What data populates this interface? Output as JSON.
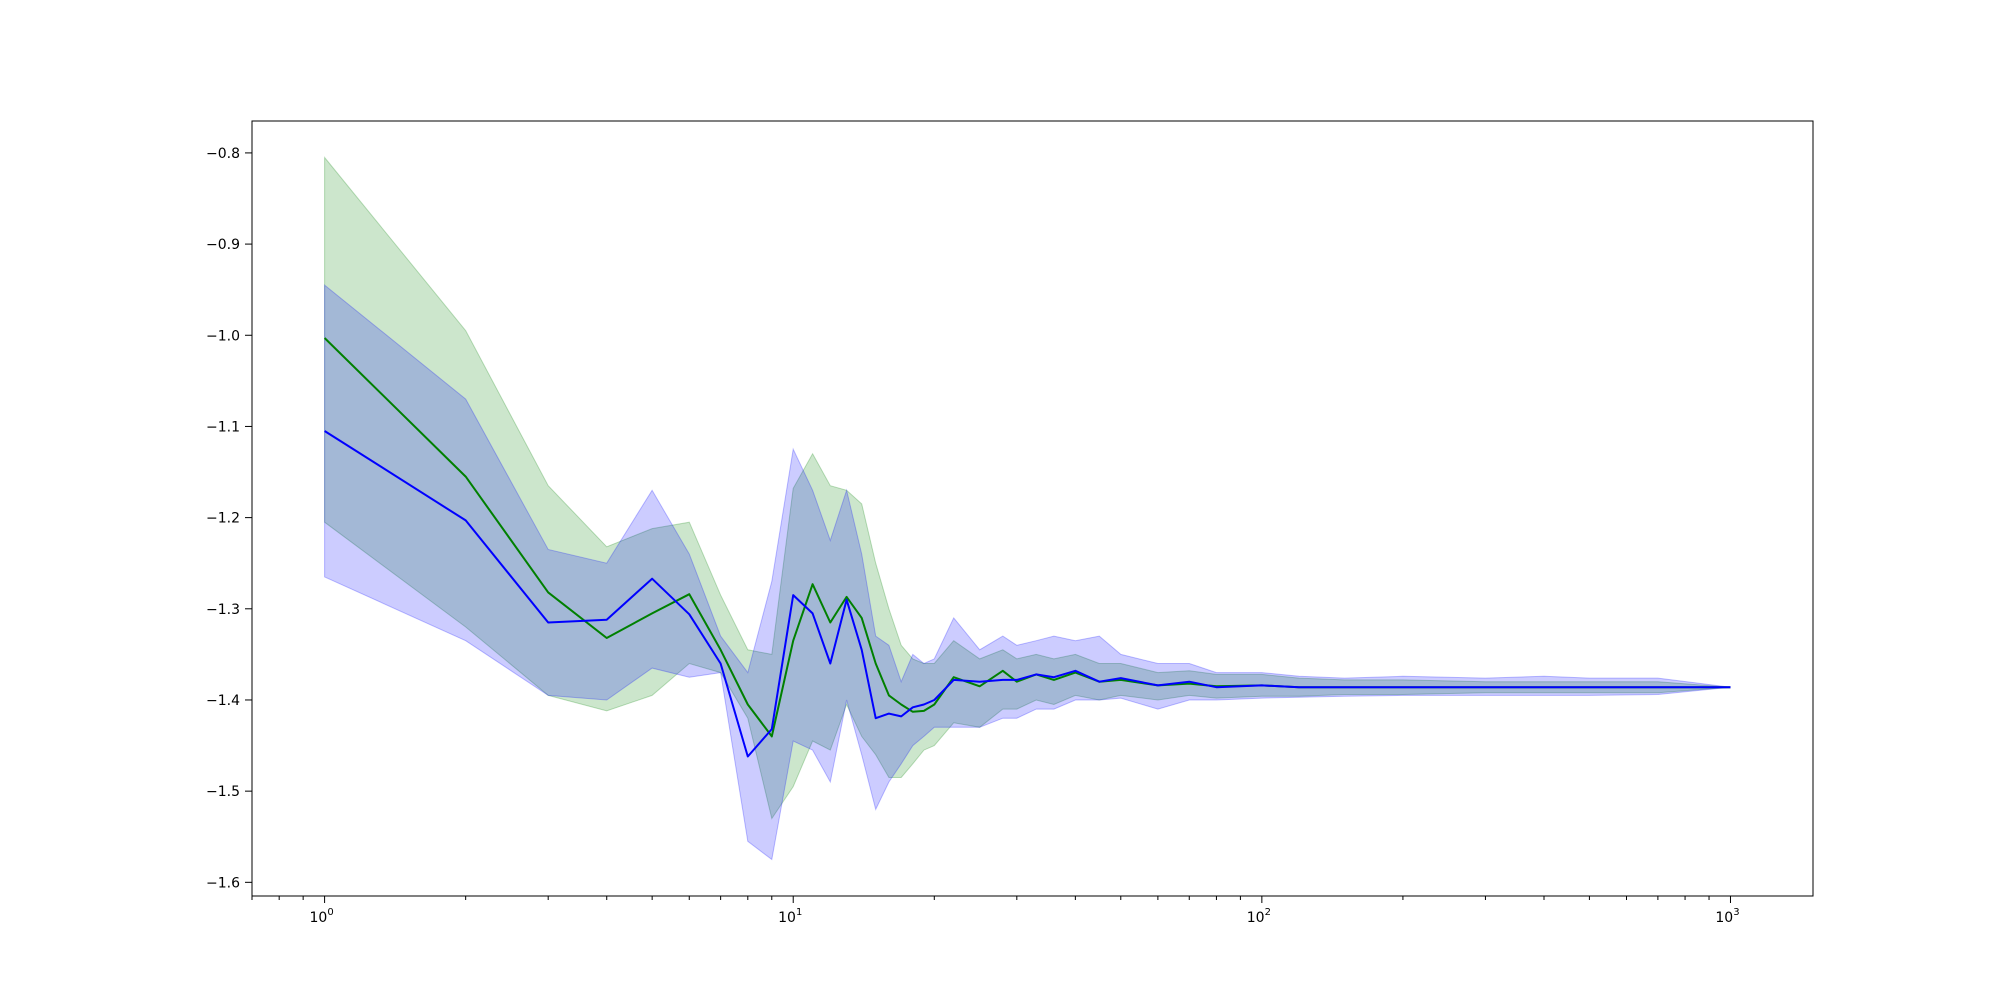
{
  "chart_data": {
    "type": "line",
    "title": "",
    "xlabel": "",
    "ylabel": "",
    "x_scale": "log",
    "xlim": [
      0.7,
      1500
    ],
    "ylim": [
      -1.615,
      -0.765
    ],
    "grid": false,
    "legend": "none",
    "x_tick_labels": [
      {
        "value": 1,
        "base": "10",
        "exp": "0"
      },
      {
        "value": 10,
        "base": "10",
        "exp": "1"
      },
      {
        "value": 100,
        "base": "10",
        "exp": "2"
      },
      {
        "value": 1000,
        "base": "10",
        "exp": "3"
      }
    ],
    "y_ticks": [
      -0.8,
      -0.9,
      -1.0,
      -1.1,
      -1.2,
      -1.3,
      -1.4,
      -1.5,
      -1.6
    ],
    "y_tick_labels": [
      "−0.8",
      "−0.9",
      "−1.0",
      "−1.1",
      "−1.2",
      "−1.3",
      "−1.4",
      "−1.5",
      "−1.6"
    ],
    "series": [
      {
        "color": "#008000",
        "band_color": "#008000",
        "x": [
          1,
          2,
          3,
          4,
          5,
          6,
          7,
          8,
          9,
          10,
          11,
          12,
          13,
          14,
          15,
          16,
          17,
          18,
          19,
          20,
          22,
          25,
          28,
          30,
          33,
          36,
          40,
          45,
          50,
          60,
          70,
          80,
          100,
          120,
          150,
          200,
          300,
          400,
          500,
          700,
          1000
        ],
        "y": [
          -1.003,
          -1.155,
          -1.282,
          -1.332,
          -1.305,
          -1.284,
          -1.345,
          -1.405,
          -1.44,
          -1.335,
          -1.273,
          -1.315,
          -1.287,
          -1.31,
          -1.36,
          -1.395,
          -1.405,
          -1.413,
          -1.412,
          -1.405,
          -1.375,
          -1.385,
          -1.368,
          -1.38,
          -1.372,
          -1.378,
          -1.37,
          -1.38,
          -1.378,
          -1.384,
          -1.382,
          -1.385,
          -1.384,
          -1.386,
          -1.386,
          -1.386,
          -1.386,
          -1.386,
          -1.386,
          -1.386,
          -1.386
        ],
        "upper": [
          -0.805,
          -0.995,
          -1.165,
          -1.232,
          -1.212,
          -1.205,
          -1.285,
          -1.345,
          -1.35,
          -1.168,
          -1.13,
          -1.165,
          -1.17,
          -1.185,
          -1.25,
          -1.3,
          -1.34,
          -1.355,
          -1.36,
          -1.36,
          -1.335,
          -1.355,
          -1.345,
          -1.355,
          -1.35,
          -1.355,
          -1.35,
          -1.36,
          -1.36,
          -1.37,
          -1.368,
          -1.372,
          -1.372,
          -1.376,
          -1.378,
          -1.378,
          -1.38,
          -1.38,
          -1.38,
          -1.38,
          -1.386
        ],
        "lower": [
          -1.205,
          -1.32,
          -1.395,
          -1.412,
          -1.395,
          -1.36,
          -1.37,
          -1.42,
          -1.53,
          -1.495,
          -1.445,
          -1.455,
          -1.405,
          -1.44,
          -1.46,
          -1.485,
          -1.485,
          -1.47,
          -1.455,
          -1.45,
          -1.425,
          -1.43,
          -1.41,
          -1.41,
          -1.4,
          -1.405,
          -1.395,
          -1.4,
          -1.395,
          -1.4,
          -1.395,
          -1.398,
          -1.396,
          -1.396,
          -1.394,
          -1.394,
          -1.392,
          -1.392,
          -1.392,
          -1.392,
          -1.386
        ]
      },
      {
        "color": "#0000ff",
        "band_color": "#0000ff",
        "x": [
          1,
          2,
          3,
          4,
          5,
          6,
          7,
          8,
          9,
          10,
          11,
          12,
          13,
          14,
          15,
          16,
          17,
          18,
          19,
          20,
          22,
          25,
          28,
          30,
          33,
          36,
          40,
          45,
          50,
          60,
          70,
          80,
          100,
          120,
          150,
          200,
          300,
          400,
          500,
          700,
          1000
        ],
        "y": [
          -1.105,
          -1.203,
          -1.315,
          -1.312,
          -1.267,
          -1.306,
          -1.36,
          -1.462,
          -1.432,
          -1.285,
          -1.305,
          -1.36,
          -1.29,
          -1.345,
          -1.42,
          -1.415,
          -1.418,
          -1.408,
          -1.405,
          -1.4,
          -1.378,
          -1.38,
          -1.378,
          -1.378,
          -1.372,
          -1.375,
          -1.368,
          -1.38,
          -1.376,
          -1.384,
          -1.38,
          -1.386,
          -1.384,
          -1.386,
          -1.386,
          -1.386,
          -1.386,
          -1.386,
          -1.386,
          -1.386,
          -1.386
        ],
        "upper": [
          -0.945,
          -1.07,
          -1.235,
          -1.25,
          -1.17,
          -1.24,
          -1.33,
          -1.37,
          -1.27,
          -1.125,
          -1.17,
          -1.225,
          -1.17,
          -1.24,
          -1.33,
          -1.34,
          -1.38,
          -1.35,
          -1.36,
          -1.355,
          -1.31,
          -1.345,
          -1.33,
          -1.34,
          -1.335,
          -1.33,
          -1.335,
          -1.33,
          -1.35,
          -1.36,
          -1.36,
          -1.37,
          -1.37,
          -1.374,
          -1.376,
          -1.374,
          -1.376,
          -1.374,
          -1.376,
          -1.376,
          -1.386
        ],
        "lower": [
          -1.265,
          -1.335,
          -1.395,
          -1.4,
          -1.365,
          -1.375,
          -1.37,
          -1.555,
          -1.575,
          -1.445,
          -1.455,
          -1.49,
          -1.4,
          -1.46,
          -1.52,
          -1.49,
          -1.47,
          -1.45,
          -1.44,
          -1.43,
          -1.43,
          -1.43,
          -1.42,
          -1.42,
          -1.41,
          -1.41,
          -1.4,
          -1.4,
          -1.398,
          -1.41,
          -1.4,
          -1.4,
          -1.398,
          -1.397,
          -1.396,
          -1.395,
          -1.395,
          -1.395,
          -1.395,
          -1.394,
          -1.386
        ]
      }
    ]
  }
}
